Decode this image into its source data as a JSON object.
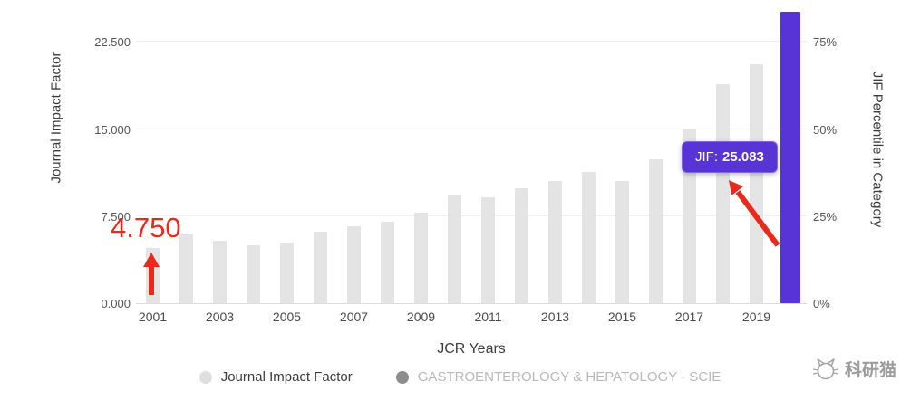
{
  "chart_data": {
    "type": "bar",
    "title": "",
    "xlabel": "JCR Years",
    "ylabel_left": "Journal Impact Factor",
    "ylabel_right": "JIF Percentile in Category",
    "categories": [
      "2001",
      "2002",
      "2003",
      "2004",
      "2005",
      "2006",
      "2007",
      "2008",
      "2009",
      "2010",
      "2011",
      "2012",
      "2013",
      "2014",
      "2015",
      "2016",
      "2017",
      "2018",
      "2019",
      "2020"
    ],
    "values": [
      4.75,
      5.9,
      5.4,
      5.0,
      5.2,
      6.2,
      6.6,
      7.0,
      7.8,
      9.3,
      9.1,
      9.9,
      10.5,
      11.3,
      10.5,
      12.4,
      15.0,
      18.9,
      20.6,
      25.083
    ],
    "highlight_index": 19,
    "ylim_left": [
      0,
      25.5
    ],
    "left_ticks": [
      {
        "value": 0,
        "label": "0.000"
      },
      {
        "value": 7.5,
        "label": "7.500"
      },
      {
        "value": 15,
        "label": "15.000"
      },
      {
        "value": 22.5,
        "label": "22.500"
      }
    ],
    "right_tick_labels": [
      "0%",
      "25%",
      "50%",
      "75%"
    ],
    "grid": true,
    "legend_position": "bottom",
    "colors": {
      "bar": "#e4e4e4",
      "highlight": "#5833d6",
      "grid": "#eeeeee"
    }
  },
  "annotations": {
    "first_value": "4.750",
    "annotation_color": "#e8291c",
    "tooltip": {
      "label": "JIF:",
      "value": "25.083"
    }
  },
  "legend": {
    "items": [
      {
        "label": "Journal Impact Factor",
        "color": "#dfdfdf",
        "text_color": "#3c3c3c"
      },
      {
        "label": "GASTROENTEROLOGY & HEPATOLOGY - SCIE",
        "color": "#8d8d8d",
        "text_color": "#b8b8b8"
      }
    ]
  },
  "watermark": {
    "text": "科研猫"
  }
}
